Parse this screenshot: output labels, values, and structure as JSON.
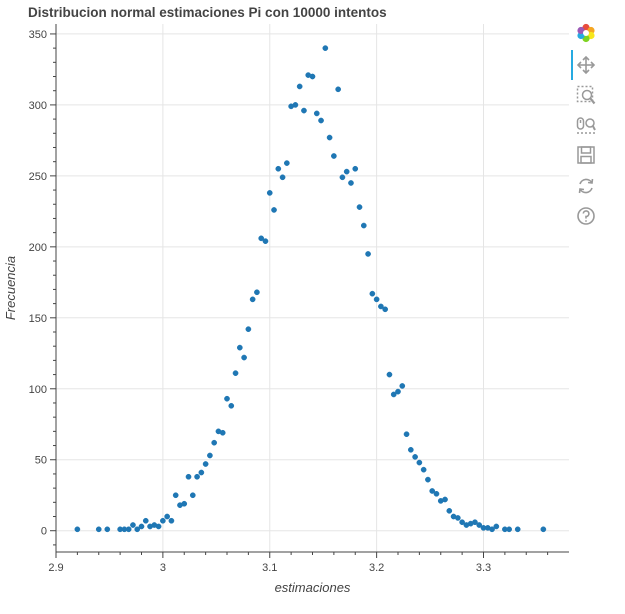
{
  "chart_data": {
    "type": "scatter",
    "title": "Distribucion normal estimaciones Pi con 10000 intentos",
    "xlabel": "estimaciones",
    "ylabel": "Frecuencia",
    "xlim": [
      2.9,
      3.38
    ],
    "ylim": [
      -15,
      357
    ],
    "xticks": [
      2.9,
      3.0,
      3.1,
      3.2,
      3.3
    ],
    "xtick_labels": [
      "2.9",
      "3",
      "3.1",
      "3.2",
      "3.3"
    ],
    "yticks": [
      0,
      50,
      100,
      150,
      200,
      250,
      300,
      350
    ],
    "ytick_labels": [
      "0",
      "50",
      "100",
      "150",
      "200",
      "250",
      "300",
      "350"
    ],
    "grid": true,
    "marker_color": "#1f77b4",
    "points": [
      [
        2.92,
        1
      ],
      [
        2.94,
        1
      ],
      [
        2.948,
        1
      ],
      [
        2.96,
        1
      ],
      [
        2.964,
        1
      ],
      [
        2.968,
        1
      ],
      [
        2.972,
        4
      ],
      [
        2.976,
        1
      ],
      [
        2.98,
        3
      ],
      [
        2.984,
        7
      ],
      [
        2.988,
        3
      ],
      [
        2.992,
        4
      ],
      [
        2.996,
        3
      ],
      [
        3.0,
        7
      ],
      [
        3.004,
        10
      ],
      [
        3.008,
        7
      ],
      [
        3.012,
        25
      ],
      [
        3.016,
        18
      ],
      [
        3.02,
        19
      ],
      [
        3.024,
        38
      ],
      [
        3.028,
        25
      ],
      [
        3.032,
        38
      ],
      [
        3.036,
        41
      ],
      [
        3.04,
        47
      ],
      [
        3.044,
        53
      ],
      [
        3.048,
        62
      ],
      [
        3.052,
        70
      ],
      [
        3.056,
        69
      ],
      [
        3.06,
        93
      ],
      [
        3.064,
        88
      ],
      [
        3.068,
        111
      ],
      [
        3.072,
        129
      ],
      [
        3.076,
        122
      ],
      [
        3.08,
        142
      ],
      [
        3.084,
        163
      ],
      [
        3.088,
        168
      ],
      [
        3.092,
        206
      ],
      [
        3.096,
        204
      ],
      [
        3.1,
        238
      ],
      [
        3.104,
        226
      ],
      [
        3.108,
        255
      ],
      [
        3.112,
        249
      ],
      [
        3.116,
        259
      ],
      [
        3.12,
        299
      ],
      [
        3.124,
        300
      ],
      [
        3.128,
        313
      ],
      [
        3.132,
        296
      ],
      [
        3.136,
        321
      ],
      [
        3.14,
        320
      ],
      [
        3.144,
        294
      ],
      [
        3.148,
        289
      ],
      [
        3.152,
        340
      ],
      [
        3.156,
        277
      ],
      [
        3.16,
        264
      ],
      [
        3.164,
        311
      ],
      [
        3.168,
        249
      ],
      [
        3.172,
        253
      ],
      [
        3.176,
        245
      ],
      [
        3.18,
        255
      ],
      [
        3.184,
        228
      ],
      [
        3.188,
        215
      ],
      [
        3.192,
        195
      ],
      [
        3.196,
        167
      ],
      [
        3.2,
        163
      ],
      [
        3.204,
        158
      ],
      [
        3.208,
        156
      ],
      [
        3.212,
        110
      ],
      [
        3.216,
        96
      ],
      [
        3.22,
        98
      ],
      [
        3.224,
        102
      ],
      [
        3.228,
        68
      ],
      [
        3.232,
        57
      ],
      [
        3.236,
        52
      ],
      [
        3.24,
        48
      ],
      [
        3.244,
        43
      ],
      [
        3.248,
        36
      ],
      [
        3.252,
        28
      ],
      [
        3.256,
        26
      ],
      [
        3.26,
        21
      ],
      [
        3.264,
        22
      ],
      [
        3.268,
        14
      ],
      [
        3.272,
        10
      ],
      [
        3.276,
        9
      ],
      [
        3.28,
        6
      ],
      [
        3.284,
        4
      ],
      [
        3.288,
        5
      ],
      [
        3.292,
        6
      ],
      [
        3.296,
        4
      ],
      [
        3.3,
        2
      ],
      [
        3.304,
        2
      ],
      [
        3.308,
        1
      ],
      [
        3.312,
        3
      ],
      [
        3.32,
        1
      ],
      [
        3.324,
        1
      ],
      [
        3.332,
        1
      ],
      [
        3.356,
        1
      ]
    ]
  },
  "toolbar": {
    "tools": [
      {
        "name": "bokeh-logo-icon",
        "active": false
      },
      {
        "name": "pan-icon",
        "active": true
      },
      {
        "name": "box-zoom-icon",
        "active": false
      },
      {
        "name": "wheel-zoom-icon",
        "active": false
      },
      {
        "name": "save-icon",
        "active": false
      },
      {
        "name": "reset-icon",
        "active": false
      },
      {
        "name": "help-icon",
        "active": false
      }
    ]
  }
}
